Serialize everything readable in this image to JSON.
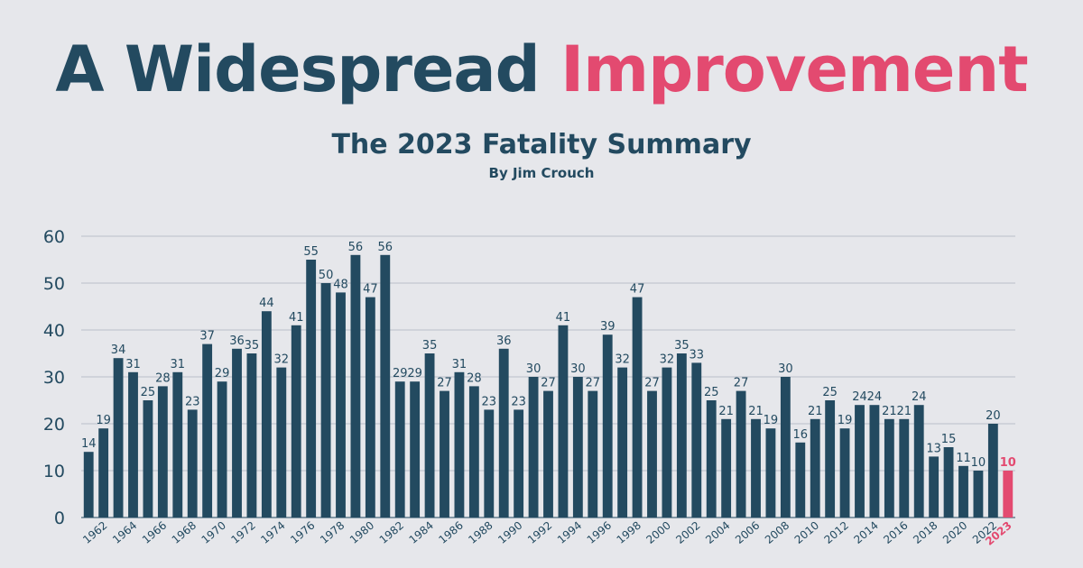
{
  "header": {
    "title_part1": "A Widespread ",
    "title_part2": "Improvement",
    "subtitle": "The 2023 Fatality Summary",
    "byline": "By Jim Crouch"
  },
  "colors": {
    "background": "#e6e7eb",
    "bar": "#234a60",
    "highlight": "#e34a70",
    "grid": "#b9bfc8",
    "text": "#234a60"
  },
  "chart_data": {
    "type": "bar",
    "title": "The 2023 Fatality Summary",
    "xlabel": "",
    "ylabel": "",
    "ylim": [
      0,
      60
    ],
    "yticks": [
      0,
      10,
      20,
      30,
      40,
      50,
      60
    ],
    "grid": true,
    "categories": [
      "1961",
      "1962",
      "1963",
      "1964",
      "1965",
      "1966",
      "1967",
      "1968",
      "1969",
      "1970",
      "1971",
      "1972",
      "1973",
      "1974",
      "1975",
      "1976",
      "1977",
      "1978",
      "1979",
      "1980",
      "1981",
      "1982",
      "1983",
      "1984",
      "1985",
      "1986",
      "1987",
      "1988",
      "1989",
      "1990",
      "1991",
      "1992",
      "1993",
      "1994",
      "1995",
      "1996",
      "1997",
      "1998",
      "1999",
      "2000",
      "2001",
      "2002",
      "2003",
      "2004",
      "2005",
      "2006",
      "2007",
      "2008",
      "2009",
      "2010",
      "2011",
      "2012",
      "2013",
      "2014",
      "2015",
      "2016",
      "2017",
      "2018",
      "2019",
      "2020",
      "2021",
      "2022",
      "2023"
    ],
    "tick_labels": [
      "1962",
      "1964",
      "1966",
      "1968",
      "1970",
      "1972",
      "1974",
      "1976",
      "1978",
      "1980",
      "1982",
      "1984",
      "1986",
      "1988",
      "1990",
      "1992",
      "1994",
      "1996",
      "1998",
      "2000",
      "2002",
      "2004",
      "2006",
      "2008",
      "2010",
      "2012",
      "2014",
      "2016",
      "2018",
      "2020",
      "2022",
      "2023"
    ],
    "values": [
      14,
      19,
      34,
      31,
      25,
      28,
      31,
      23,
      37,
      29,
      36,
      35,
      44,
      32,
      41,
      55,
      50,
      48,
      56,
      47,
      56,
      29,
      29,
      35,
      27,
      31,
      28,
      23,
      36,
      23,
      30,
      27,
      41,
      30,
      27,
      39,
      32,
      47,
      27,
      32,
      35,
      33,
      25,
      21,
      27,
      21,
      19,
      30,
      16,
      21,
      25,
      19,
      24,
      24,
      21,
      21,
      24,
      13,
      15,
      11,
      10,
      20,
      10
    ],
    "highlight": "2023"
  }
}
